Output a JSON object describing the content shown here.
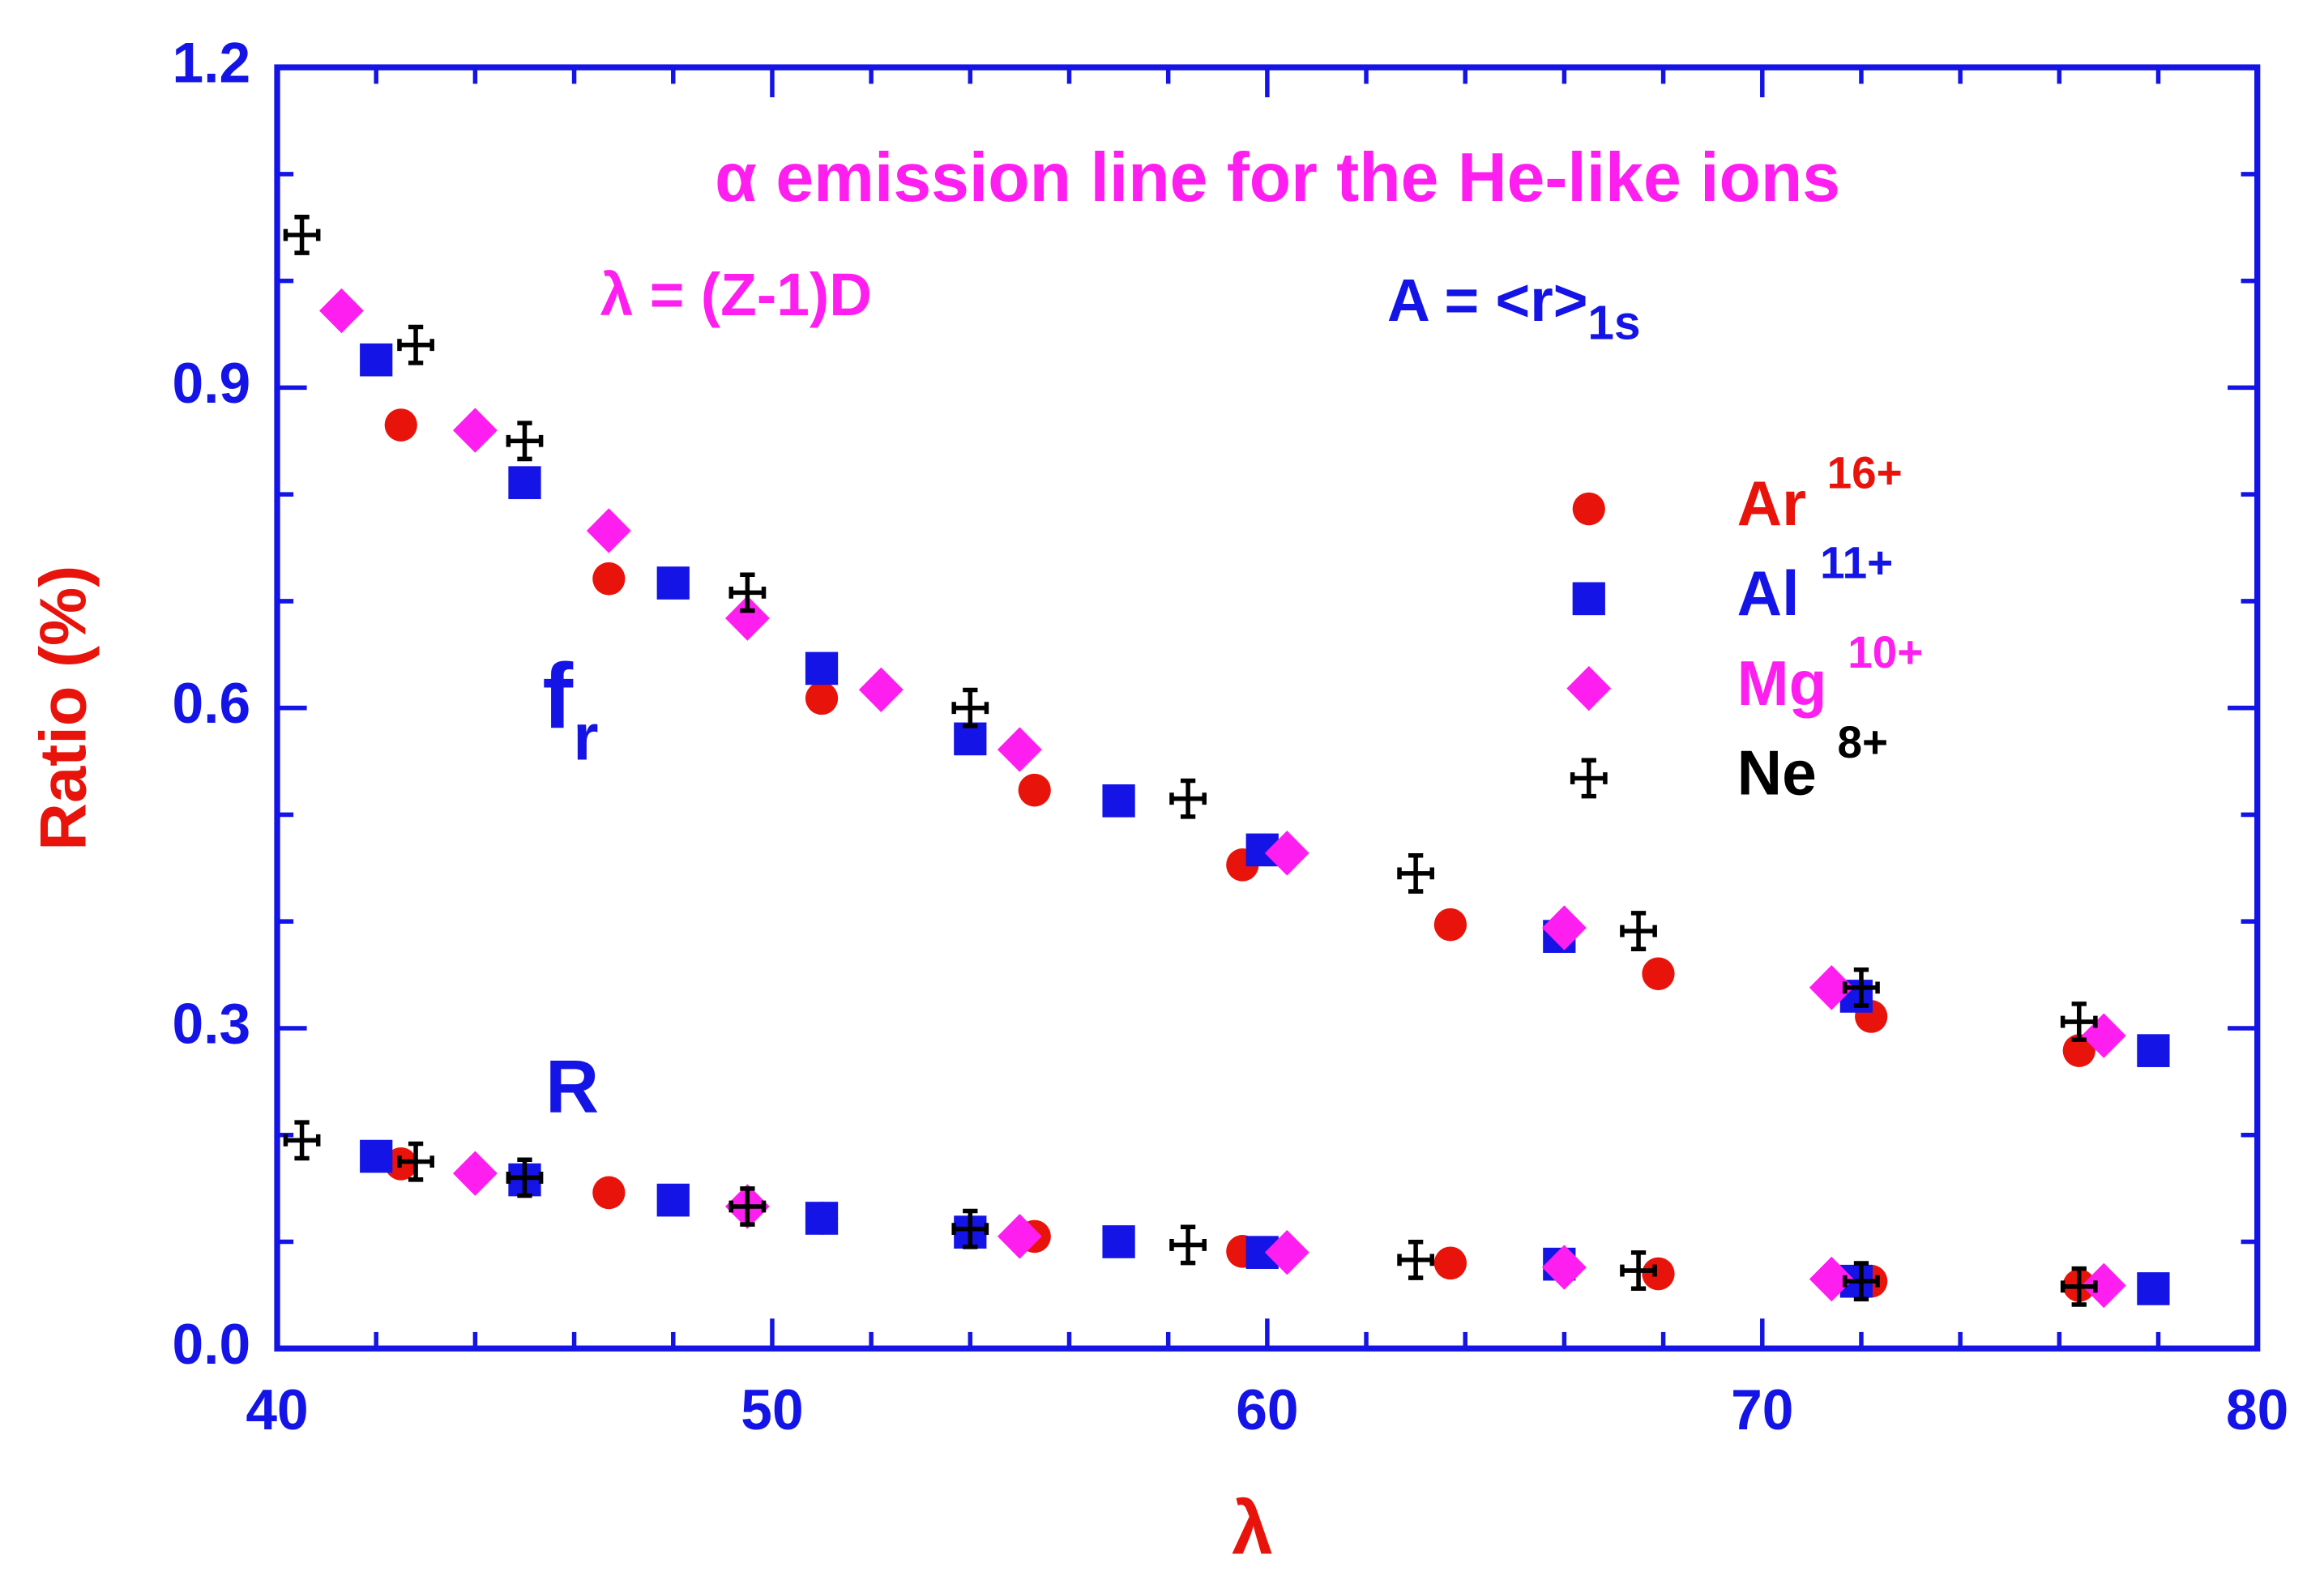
{
  "chart_data": {
    "type": "scatter",
    "title": "α emission line for the He-like ions",
    "annotations": {
      "lambda_def": "λ = (Z-1)D",
      "a_def": "A = <r>",
      "a_def_sub": "1s",
      "fr": "f",
      "fr_sub": "r",
      "R": "R"
    },
    "x_label": "λ",
    "y_label": "Ratio (%)",
    "xlim": [
      40,
      80
    ],
    "ylim": [
      0,
      1.2
    ],
    "xticks": [
      40,
      50,
      60,
      70,
      80
    ],
    "xminorticks": [
      42,
      44,
      46,
      48,
      52,
      54,
      56,
      58,
      62,
      64,
      66,
      68,
      72,
      74,
      76,
      78
    ],
    "yticks": [
      {
        "value": 0,
        "label": "0.0"
      },
      0.3,
      0.6,
      0.9,
      1.2
    ],
    "yminorticks": [
      0.1,
      0.2,
      0.4,
      0.5,
      0.7,
      0.8,
      1.0,
      1.1
    ],
    "axis_color": "#1414e6",
    "label_color": "#e8140c",
    "series": [
      {
        "name": "Ar",
        "charge": "16+",
        "color": "#e8140c",
        "marker": "circle",
        "x": [
          42.5,
          46.7,
          51.0,
          55.3,
          59.5,
          63.7,
          67.9,
          72.2,
          76.4
        ],
        "fr": [
          0.865,
          0.721,
          0.609,
          0.523,
          0.453,
          0.397,
          0.351,
          0.311,
          0.279
        ],
        "R": [
          0.173,
          0.146,
          0.122,
          0.105,
          0.091,
          0.08,
          0.07,
          0.063,
          0.059
        ]
      },
      {
        "name": "Al",
        "charge": "11+",
        "color": "#1414e6",
        "marker": "square",
        "x": [
          42.0,
          45.0,
          48.0,
          51.0,
          54.0,
          57.0,
          59.9,
          65.9,
          71.9,
          77.9
        ],
        "fr": [
          0.926,
          0.811,
          0.717,
          0.637,
          0.571,
          0.513,
          0.467,
          0.386,
          0.33,
          0.279
        ],
        "R": [
          0.18,
          0.158,
          0.139,
          0.122,
          0.109,
          0.1,
          0.09,
          0.079,
          0.063,
          0.056
        ]
      },
      {
        "name": "Mg",
        "charge": "10+",
        "color": "#ff1ef0",
        "marker": "diamond",
        "x": [
          41.3,
          44.0,
          46.7,
          49.5,
          52.2,
          55.0,
          60.4,
          66.0,
          71.4,
          76.9
        ],
        "fr": [
          0.972,
          0.86,
          0.766,
          0.684,
          0.617,
          0.561,
          0.464,
          0.394,
          0.338,
          0.293
        ],
        "R": [
          null,
          0.164,
          null,
          0.133,
          null,
          0.105,
          0.09,
          0.076,
          0.065,
          0.059
        ]
      },
      {
        "name": "Ne",
        "charge": "8+",
        "color": "#000000",
        "marker": "plus",
        "x": [
          40.5,
          42.8,
          45.0,
          49.5,
          54.0,
          58.4,
          63.0,
          67.5,
          72.0,
          76.4
        ],
        "fr": [
          1.043,
          0.94,
          0.85,
          0.708,
          0.6,
          0.515,
          0.445,
          0.391,
          0.338,
          0.306
        ],
        "R": [
          0.195,
          0.175,
          0.16,
          0.133,
          0.112,
          0.097,
          0.083,
          0.073,
          0.063,
          0.058
        ]
      }
    ]
  }
}
